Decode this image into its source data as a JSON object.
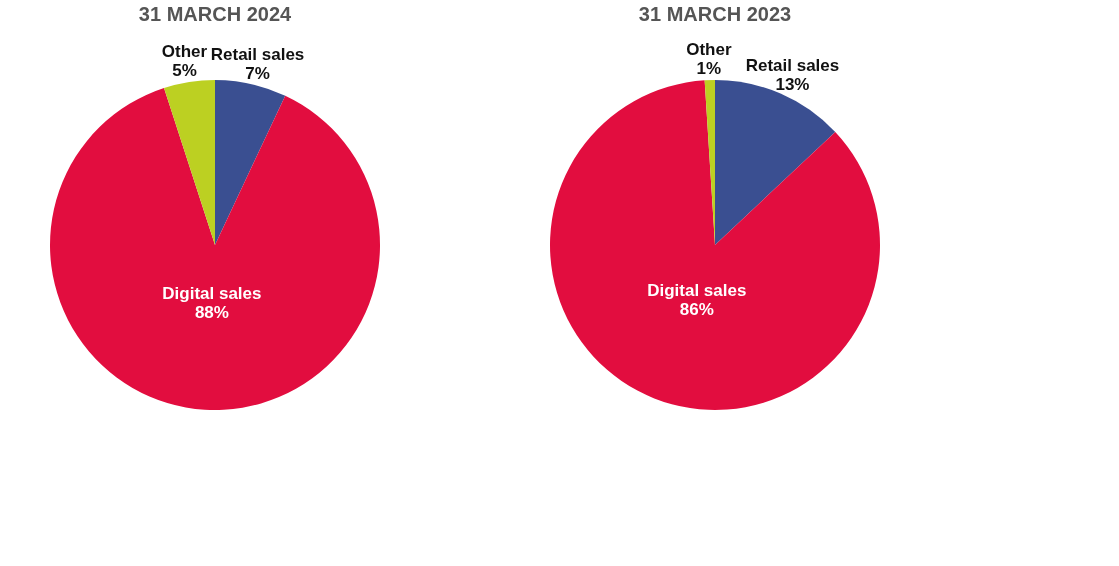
{
  "chart_data": [
    {
      "type": "pie",
      "title": "31 MARCH 2024",
      "categories": [
        "Retail sales",
        "Digital sales",
        "Other"
      ],
      "values": [
        7,
        88,
        5
      ],
      "value_labels": [
        "7%",
        "88%",
        "5%"
      ],
      "colors": [
        "#3a4f91",
        "#e20d3f",
        "#bcd022"
      ],
      "legend": false
    },
    {
      "type": "pie",
      "title": "31 MARCH 2023",
      "categories": [
        "Retail sales",
        "Digital sales",
        "Other"
      ],
      "values": [
        13,
        86,
        1
      ],
      "value_labels": [
        "13%",
        "86%",
        "1%"
      ],
      "colors": [
        "#3a4f91",
        "#e20d3f",
        "#bcd022"
      ],
      "legend": false
    }
  ]
}
